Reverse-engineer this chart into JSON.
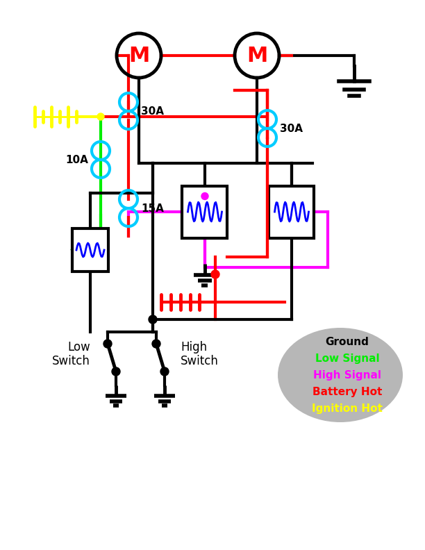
{
  "bg_color": "#ffffff",
  "motor_label_color": "#ff0000",
  "red_color": "#ff0000",
  "green_color": "#00ee00",
  "magenta_color": "#ff00ff",
  "cyan_color": "#00ccff",
  "yellow_color": "#ffff00",
  "black_color": "#000000",
  "blue_color": "#0000ff",
  "legend_bg": "#b0b0b0",
  "legend_texts": [
    "Ground",
    "Low Signal",
    "High Signal",
    "Battery Hot",
    "Ignition Hot"
  ],
  "legend_colors": [
    "#000000",
    "#00ee00",
    "#ff00ff",
    "#ff0000",
    "#ffff00"
  ],
  "lw": 3.0
}
